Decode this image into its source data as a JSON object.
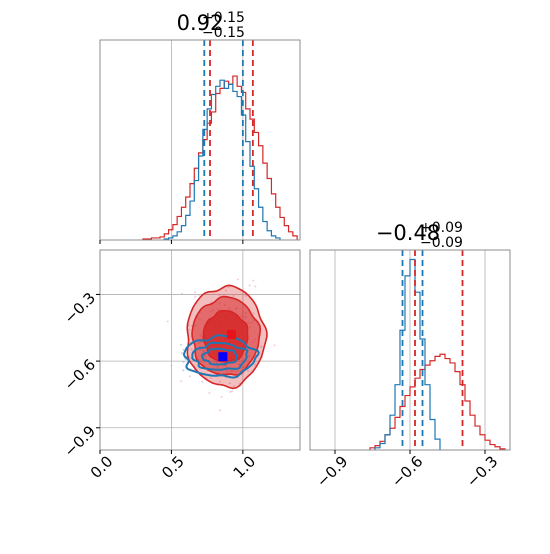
{
  "colors": {
    "series_a": "#d62728",
    "series_b": "#1f77b4",
    "grid": "#b0b0b0",
    "axis_frame": "#8c8c8c",
    "marker_a": "#e8121a",
    "marker_b": "#0000ff"
  },
  "chart_data": [
    {
      "type": "histogram",
      "panel": "top-left",
      "title": {
        "value": "0.92",
        "plus": "+0.15",
        "minus": "−0.15"
      },
      "xlim": [
        0.0,
        1.4
      ],
      "grid": true,
      "series": [
        {
          "color_key": "series_a",
          "bin_edges": [
            0.3,
            0.33,
            0.36,
            0.39,
            0.42,
            0.45,
            0.48,
            0.51,
            0.54,
            0.57,
            0.6,
            0.63,
            0.66,
            0.69,
            0.72,
            0.75,
            0.78,
            0.81,
            0.84,
            0.87,
            0.9,
            0.93,
            0.96,
            0.99,
            1.02,
            1.05,
            1.08,
            1.11,
            1.14,
            1.17,
            1.2,
            1.23,
            1.26,
            1.29,
            1.32,
            1.35,
            1.38
          ],
          "counts": [
            1,
            1,
            2,
            2,
            3,
            6,
            10,
            15,
            23,
            32,
            42,
            55,
            70,
            85,
            98,
            114,
            125,
            143,
            148,
            155,
            152,
            160,
            150,
            144,
            128,
            118,
            105,
            92,
            75,
            60,
            45,
            32,
            22,
            14,
            8,
            4
          ]
        },
        {
          "color_key": "series_b",
          "bin_edges": [
            0.45,
            0.48,
            0.51,
            0.54,
            0.57,
            0.6,
            0.63,
            0.66,
            0.69,
            0.72,
            0.75,
            0.78,
            0.81,
            0.84,
            0.87,
            0.9,
            0.93,
            0.96,
            0.99,
            1.02,
            1.05,
            1.08,
            1.11,
            1.14,
            1.17,
            1.2,
            1.23,
            1.26
          ],
          "counts": [
            1,
            2,
            4,
            8,
            14,
            24,
            38,
            58,
            82,
            108,
            128,
            142,
            150,
            156,
            148,
            152,
            145,
            140,
            122,
            96,
            72,
            50,
            32,
            18,
            9,
            4,
            2
          ]
        }
      ],
      "quantile_lines": [
        {
          "color_key": "series_b",
          "x": [
            0.73,
            1.0
          ]
        },
        {
          "color_key": "series_a",
          "x": [
            0.77,
            1.07
          ]
        }
      ]
    },
    {
      "type": "scatter-contour",
      "panel": "bottom-left",
      "xlim": [
        0.0,
        1.4
      ],
      "ylim": [
        -1.0,
        -0.1
      ],
      "xticks": [
        0.0,
        0.5,
        1.0
      ],
      "xtick_labels": [
        "0.0",
        "0.5",
        "1.0"
      ],
      "yticks": [
        -0.3,
        -0.6,
        -0.9
      ],
      "ytick_labels": [
        "−0.3",
        "−0.6",
        "−0.9"
      ],
      "grid": true,
      "contours_a": {
        "center": [
          0.88,
          -0.49
        ],
        "levels": [
          {
            "rx": 0.275,
            "ry": 0.225,
            "fill_opacity": 0.3
          },
          {
            "rx": 0.235,
            "ry": 0.175,
            "fill_opacity": 0.55
          },
          {
            "rx": 0.155,
            "ry": 0.115,
            "fill_opacity": 0.85
          }
        ]
      },
      "contours_b": {
        "center": [
          0.84,
          -0.58
        ],
        "levels": [
          {
            "rx": 0.25,
            "ry": 0.09
          },
          {
            "rx": 0.19,
            "ry": 0.06
          },
          {
            "rx": 0.12,
            "ry": 0.035
          }
        ]
      },
      "markers": [
        {
          "color_key": "marker_a",
          "x": 0.92,
          "y": -0.48
        },
        {
          "color_key": "marker_b",
          "x": 0.86,
          "y": -0.58
        }
      ]
    },
    {
      "type": "histogram",
      "panel": "bottom-right",
      "title": {
        "value": "−0.48",
        "plus": "+0.09",
        "minus": "−0.09"
      },
      "xlim": [
        -1.0,
        -0.2
      ],
      "xticks": [
        -0.9,
        -0.6,
        -0.3
      ],
      "xtick_labels": [
        "−0.9",
        "−0.6",
        "−0.3"
      ],
      "grid": true,
      "series": [
        {
          "color_key": "series_a",
          "bin_edges": [
            -0.76,
            -0.74,
            -0.72,
            -0.7,
            -0.68,
            -0.66,
            -0.64,
            -0.62,
            -0.6,
            -0.58,
            -0.56,
            -0.54,
            -0.52,
            -0.5,
            -0.48,
            -0.46,
            -0.44,
            -0.42,
            -0.4,
            -0.38,
            -0.36,
            -0.34,
            -0.32,
            -0.3,
            -0.28,
            -0.26,
            -0.24,
            -0.22
          ],
          "counts": [
            2,
            4,
            8,
            14,
            20,
            30,
            40,
            50,
            58,
            66,
            74,
            78,
            82,
            86,
            88,
            84,
            80,
            72,
            60,
            45,
            32,
            22,
            14,
            9,
            5,
            3,
            1
          ]
        },
        {
          "color_key": "series_b",
          "bin_edges": [
            -0.74,
            -0.72,
            -0.7,
            -0.68,
            -0.66,
            -0.64,
            -0.62,
            -0.6,
            -0.58,
            -0.56,
            -0.54,
            -0.52,
            -0.5,
            -0.48
          ],
          "counts": [
            2,
            6,
            14,
            32,
            60,
            110,
            160,
            175,
            145,
            102,
            60,
            28,
            10
          ]
        }
      ],
      "quantile_lines": [
        {
          "color_key": "series_b",
          "x": [
            -0.63,
            -0.55
          ]
        },
        {
          "color_key": "series_a",
          "x": [
            -0.58,
            -0.39
          ]
        }
      ]
    }
  ]
}
